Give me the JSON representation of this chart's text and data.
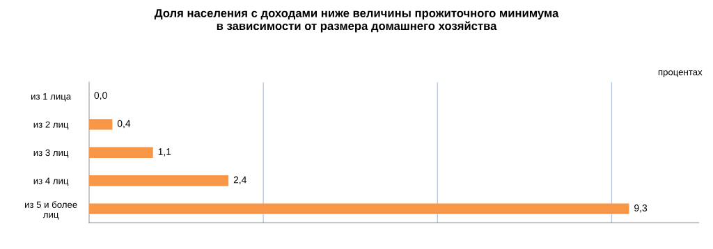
{
  "chart_data": {
    "type": "bar",
    "orientation": "horizontal",
    "title": "Доля населения с доходами ниже величины прожиточного минимума\nв зависимости от размера домашнего хозяйства",
    "annotations": [
      "процентах"
    ],
    "categories": [
      "из 1 лица",
      "из 2 лиц",
      "из 3 лиц",
      "из 4 лиц",
      "из 5 и более\nлиц"
    ],
    "values": [
      0.0,
      0.4,
      1.1,
      2.4,
      9.3
    ],
    "value_labels": [
      "0,0",
      "0,4",
      "1,1",
      "2,4",
      "9,3"
    ],
    "color": "#f79646",
    "xlim": [
      0,
      10.5
    ],
    "xticks": [
      {
        "value": 3,
        "label": null
      },
      {
        "value": 6,
        "label": null
      },
      {
        "value": 9,
        "label": null
      }
    ],
    "grid": "x",
    "tick_labels": "y",
    "legend": false
  }
}
